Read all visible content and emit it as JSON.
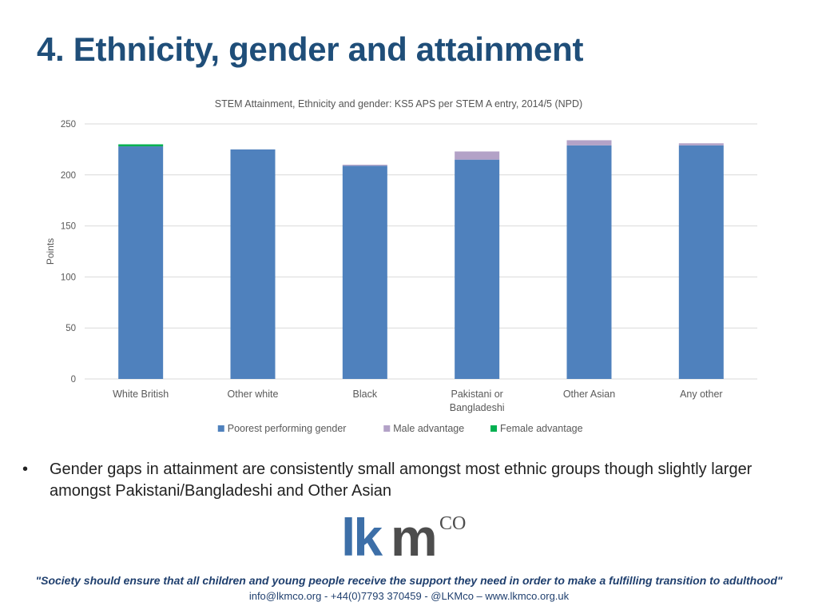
{
  "slide": {
    "title": "4. Ethnicity, gender and attainment"
  },
  "chart_data": {
    "type": "bar",
    "stacked": true,
    "title": "STEM Attainment, Ethnicity and gender: KS5 APS per STEM A entry, 2014/5 (NPD)",
    "xlabel": "",
    "ylabel": "Points",
    "ylim": [
      0,
      250
    ],
    "yticks": [
      0,
      50,
      100,
      150,
      200,
      250
    ],
    "grid": true,
    "legend_position": "bottom",
    "categories": [
      [
        "White British"
      ],
      [
        "Other white"
      ],
      [
        "Black"
      ],
      [
        "Pakistani or",
        "Bangladeshi"
      ],
      [
        "Other Asian"
      ],
      [
        "Any other"
      ]
    ],
    "series": [
      {
        "name": "Poorest performing gender",
        "color": "#4f81bd",
        "values": [
          228,
          225,
          209,
          215,
          229,
          229
        ]
      },
      {
        "name": "Male advantage",
        "color": "#b3a2c7",
        "values": [
          0,
          0,
          1,
          8,
          5,
          2
        ]
      },
      {
        "name": "Female advantage",
        "color": "#00b050",
        "values": [
          2,
          0,
          0,
          0,
          0,
          0
        ]
      }
    ]
  },
  "bullets": [
    "Gender gaps in attainment are consistently small amongst most ethnic groups though slightly larger amongst Pakistani/Bangladeshi and Other Asian"
  ],
  "logo": {
    "lk": "lk",
    "m": "m",
    "co": "CO"
  },
  "footer": {
    "quote": "\"Society should ensure that all children and young people receive the support they need in order to make a fulfilling transition to adulthood\"",
    "contact": "info@lkmco.org - +44(0)7793 370459 - @LKMco – www.lkmco.org.uk"
  }
}
